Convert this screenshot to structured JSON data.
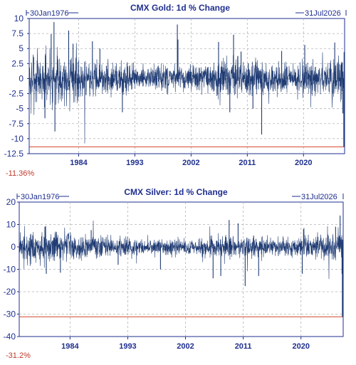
{
  "colors": {
    "series": "#1f3b73",
    "text": "#1f2f8f",
    "grid": "#b3b3b3",
    "last_line": "#d2452f"
  },
  "chart_data": [
    {
      "type": "line",
      "title": "CMX Gold: 1d % Change",
      "start_date": "30Jan1976",
      "end_date": "31Jul2026",
      "x_range": [
        1976.08,
        2026.58
      ],
      "ylim": [
        -12.5,
        10
      ],
      "y_ticks": [
        "10",
        "7.5",
        "5",
        "2.5",
        "0",
        "-2.5",
        "-5",
        "-7.5",
        "-10",
        "-12.5"
      ],
      "x_ticks": [
        "1984",
        "1993",
        "2002",
        "2011",
        "2020"
      ],
      "last_value": -11.36,
      "last_label": "-11.36%",
      "grid": true,
      "spikes": [
        {
          "x": 1980.05,
          "y": 9.4
        },
        {
          "x": 1980.2,
          "y": -8.8
        },
        {
          "x": 1979.6,
          "y": 7.4
        },
        {
          "x": 1982.4,
          "y": 8.0
        },
        {
          "x": 1978.6,
          "y": -6.6
        },
        {
          "x": 1983.1,
          "y": 5.8
        },
        {
          "x": 1986.2,
          "y": 6.2
        },
        {
          "x": 1987.4,
          "y": 5.0
        },
        {
          "x": 1991.0,
          "y": -5.6
        },
        {
          "x": 1999.8,
          "y": 9.0
        },
        {
          "x": 1999.9,
          "y": 6.5
        },
        {
          "x": 2006.4,
          "y": 6.1
        },
        {
          "x": 2008.8,
          "y": 7.3
        },
        {
          "x": 2008.2,
          "y": -5.6
        },
        {
          "x": 2010.0,
          "y": 4.5
        },
        {
          "x": 2011.9,
          "y": -5.0
        },
        {
          "x": 2013.3,
          "y": -9.3
        },
        {
          "x": 2016.5,
          "y": 4.6
        },
        {
          "x": 2020.2,
          "y": 5.6
        },
        {
          "x": 2025.0,
          "y": 6.0
        },
        {
          "x": 2026.3,
          "y": -5.8
        },
        {
          "x": 2026.5,
          "y": 4.4
        }
      ]
    },
    {
      "type": "line",
      "title": "CMX Silver: 1d % Change",
      "start_date": "30Jan1976",
      "end_date": "31Jul2026",
      "x_range": [
        1976.08,
        2026.58
      ],
      "ylim": [
        -40,
        20
      ],
      "y_ticks": [
        "20",
        "10",
        "0",
        "-10",
        "-20",
        "-30",
        "-40"
      ],
      "x_ticks": [
        "1984",
        "1993",
        "2002",
        "2011",
        "2020"
      ],
      "last_value": -31.2,
      "last_label": "-31.2%",
      "grid": true,
      "spikes": [
        {
          "x": 1980.1,
          "y": 9.0
        },
        {
          "x": 1980.3,
          "y": -12.0
        },
        {
          "x": 1982.5,
          "y": -11.5
        },
        {
          "x": 1987.3,
          "y": 7.5
        },
        {
          "x": 1991.5,
          "y": -8.0
        },
        {
          "x": 1998.1,
          "y": -10.0
        },
        {
          "x": 2006.3,
          "y": -14.0
        },
        {
          "x": 2007.5,
          "y": -13.0
        },
        {
          "x": 2008.8,
          "y": 12.0
        },
        {
          "x": 2010.2,
          "y": 10.5
        },
        {
          "x": 2011.3,
          "y": -17.5
        },
        {
          "x": 2013.4,
          "y": -13.0
        },
        {
          "x": 2020.2,
          "y": -12.0
        },
        {
          "x": 2020.4,
          "y": 8.0
        },
        {
          "x": 2025.4,
          "y": 9.0
        },
        {
          "x": 2026.1,
          "y": 14.0
        },
        {
          "x": 2026.4,
          "y": -12.0
        }
      ]
    }
  ]
}
